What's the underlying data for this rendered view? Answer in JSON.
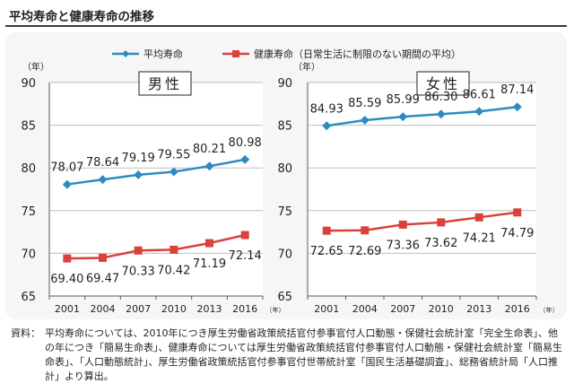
{
  "header": {
    "title": "平均寿命と健康寿命の推移"
  },
  "legend": {
    "series1": "平均寿命",
    "series2": "健康寿命（日常生活に制限のない期間の平均）"
  },
  "colors": {
    "avg": "#2e8bc0",
    "healthy": "#d9413a",
    "grid": "#bfbfbf",
    "axis": "#595959"
  },
  "chart_data": [
    {
      "type": "line",
      "panel_label": "男性",
      "y_unit_label": "（年）",
      "x_unit_label": "（年）",
      "x": [
        "2001",
        "2004",
        "2007",
        "2010",
        "2013",
        "2016"
      ],
      "ylim": [
        65,
        90
      ],
      "yticks": [
        "65",
        "70",
        "75",
        "80",
        "85",
        "90"
      ],
      "grid": true,
      "series": [
        {
          "name": "平均寿命",
          "marker": "diamond",
          "values": [
            78.07,
            78.64,
            79.19,
            79.55,
            80.21,
            80.98
          ],
          "labels": [
            "78.07",
            "78.64",
            "79.19",
            "79.55",
            "80.21",
            "80.98"
          ]
        },
        {
          "name": "健康寿命（日常生活に制限のない期間の平均）",
          "marker": "square",
          "values": [
            69.4,
            69.47,
            70.33,
            70.42,
            71.19,
            72.14
          ],
          "labels": [
            "69.40",
            "69.47",
            "70.33",
            "70.42",
            "71.19",
            "72.14"
          ]
        }
      ]
    },
    {
      "type": "line",
      "panel_label": "女性",
      "y_unit_label": "（年）",
      "x_unit_label": "（年）",
      "x": [
        "2001",
        "2004",
        "2007",
        "2010",
        "2013",
        "2016"
      ],
      "ylim": [
        65,
        90
      ],
      "yticks": [
        "65",
        "70",
        "75",
        "80",
        "85",
        "90"
      ],
      "grid": true,
      "series": [
        {
          "name": "平均寿命",
          "marker": "diamond",
          "values": [
            84.93,
            85.59,
            85.99,
            86.3,
            86.61,
            87.14
          ],
          "labels": [
            "84.93",
            "85.59",
            "85.99",
            "86.30",
            "86.61",
            "87.14"
          ]
        },
        {
          "name": "健康寿命（日常生活に制限のない期間の平均）",
          "marker": "square",
          "values": [
            72.65,
            72.69,
            73.36,
            73.62,
            74.21,
            74.79
          ],
          "labels": [
            "72.65",
            "72.69",
            "73.36",
            "73.62",
            "74.21",
            "74.79"
          ]
        }
      ]
    }
  ],
  "footnote": {
    "label": "資料：",
    "text": "平均寿命については、2010年につき厚生労働省政策統括官付参事官付人口動態・保健社会統計室「完全生命表」、他の年につき「簡易生命表」、健康寿命については厚生労働省政策統括官付参事官付人口動態・保健社会統計室「簡易生命表」、「人口動態統計」、厚生労働省政策統括官付参事官付世帯統計室「国民生活基礎調査」、総務省統計局「人口推計」より算出。"
  }
}
